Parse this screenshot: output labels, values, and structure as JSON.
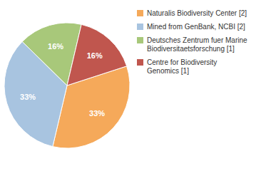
{
  "chart_data": {
    "type": "pie",
    "categories": [
      "Naturalis Biodiversity Center [2]",
      "Mined from GenBank, NCBI [2]",
      "Deutsches Zentrum fuer Marine\nBiodiversitaetsforschung [1]",
      "Centre for Biodiversity\nGenomics [1]"
    ],
    "values": [
      33,
      33,
      16,
      16
    ],
    "value_labels": [
      "33%",
      "33%",
      "16%",
      "16%"
    ],
    "colors": [
      "#F5A95A",
      "#A8C4E0",
      "#A8C87A",
      "#C0564E"
    ],
    "data_labels": true,
    "legend": "right"
  }
}
